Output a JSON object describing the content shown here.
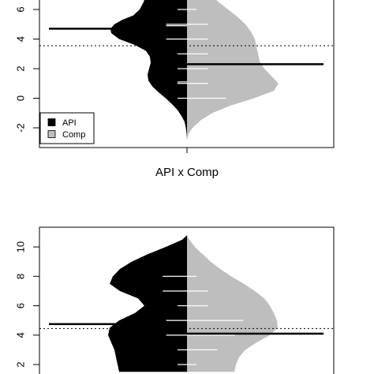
{
  "chart_data": [
    {
      "type": "beanplot",
      "title": "",
      "xlabel": "API x Comp",
      "ylabel": "",
      "y_axis_min_shown": -2.5,
      "y_axis_max_shown": 7,
      "y_ticks": [
        "-2",
        "0",
        "2",
        "4",
        "6"
      ],
      "y_tick_values": [
        -2,
        0,
        2,
        4,
        6
      ],
      "grid": false,
      "overall_mean_line": 3.55,
      "legend": {
        "placement": "bottom-left",
        "entries": [
          {
            "label": "API",
            "color": "#000000"
          },
          {
            "label": "Comp",
            "color": "#bebebe"
          }
        ]
      },
      "series": [
        {
          "name": "API",
          "side": "left",
          "color": "#000000",
          "mean": 4.7,
          "density_y": [
            7.0,
            6.5,
            6.0,
            5.6,
            5.3,
            5.0,
            4.7,
            4.4,
            4.0,
            3.6,
            3.2,
            2.8,
            2.4,
            2.0,
            1.6,
            1.2,
            0.8,
            0.4,
            0.0,
            -0.4,
            -0.8,
            -1.2,
            -1.6,
            -2.0,
            -2.4,
            -2.8
          ],
          "density_w": [
            0.52,
            0.55,
            0.6,
            0.68,
            0.82,
            0.92,
            0.97,
            0.96,
            0.86,
            0.66,
            0.52,
            0.47,
            0.46,
            0.48,
            0.5,
            0.49,
            0.44,
            0.36,
            0.27,
            0.19,
            0.12,
            0.07,
            0.03,
            0.015,
            0.005,
            0.0
          ],
          "observations": [
            6.0,
            5.0,
            4.9,
            4.0,
            3.0,
            2.0,
            1.1,
            1.0,
            0.0
          ],
          "observation_lengths": [
            0.22,
            0.48,
            0.48,
            0.48,
            0.22,
            0.22,
            0.22,
            0.22,
            0.22
          ]
        },
        {
          "name": "Comp",
          "side": "right",
          "color": "#bebebe",
          "mean": 2.3,
          "density_y": [
            7.0,
            6.5,
            6.0,
            5.5,
            5.0,
            4.5,
            4.0,
            3.5,
            3.0,
            2.5,
            2.0,
            1.5,
            1.0,
            0.5,
            0.0,
            -0.5,
            -1.0,
            -1.5,
            -2.0,
            -2.4,
            -2.8
          ],
          "density_w": [
            0.3,
            0.4,
            0.52,
            0.64,
            0.74,
            0.81,
            0.86,
            0.88,
            0.9,
            0.92,
            0.98,
            1.07,
            1.16,
            1.1,
            0.85,
            0.55,
            0.32,
            0.17,
            0.07,
            0.02,
            0.0
          ],
          "observations": [
            6.0,
            5.0,
            4.0,
            3.0,
            2.0,
            1.0,
            0.0
          ],
          "observation_lengths": [
            0.22,
            0.48,
            0.48,
            0.48,
            0.48,
            0.48,
            0.9
          ]
        }
      ]
    },
    {
      "type": "beanplot",
      "title": "",
      "xlabel": "",
      "ylabel": "",
      "y_axis_min_shown": 1.5,
      "y_axis_max_shown": 11,
      "y_ticks": [
        "2",
        "4",
        "6",
        "8",
        "10"
      ],
      "y_tick_values": [
        2,
        4,
        6,
        8,
        10
      ],
      "grid": false,
      "overall_mean_line": 4.45,
      "legend": null,
      "series": [
        {
          "name": "API",
          "side": "left",
          "color": "#000000",
          "mean": 4.75,
          "density_y": [
            10.8,
            10.5,
            10.0,
            9.5,
            9.0,
            8.5,
            8.0,
            7.5,
            7.0,
            6.5,
            6.0,
            5.5,
            5.0,
            4.5,
            4.0,
            3.5,
            3.0,
            2.5,
            2.0,
            1.5
          ],
          "density_w": [
            0.0,
            0.06,
            0.27,
            0.5,
            0.7,
            0.85,
            0.94,
            0.98,
            0.85,
            0.62,
            0.54,
            0.66,
            0.86,
            0.98,
            1.0,
            0.96,
            0.92,
            0.9,
            0.88,
            0.86
          ],
          "observations": [
            8.0,
            7.0,
            6.0,
            5.0,
            4.0,
            3.0,
            2.0
          ],
          "observation_lengths": [
            0.56,
            0.56,
            0.22,
            0.48,
            0.48,
            0.22,
            0.22
          ]
        },
        {
          "name": "Comp",
          "side": "right",
          "color": "#bebebe",
          "mean": 4.1,
          "density_y": [
            10.8,
            10.5,
            10.0,
            9.5,
            9.0,
            8.5,
            8.0,
            7.5,
            7.0,
            6.5,
            6.0,
            5.5,
            5.0,
            4.5,
            4.0,
            3.5,
            3.0,
            2.5,
            2.0,
            1.5
          ],
          "density_w": [
            0.0,
            0.03,
            0.1,
            0.2,
            0.3,
            0.42,
            0.56,
            0.72,
            0.86,
            0.98,
            1.05,
            1.1,
            1.14,
            1.15,
            1.05,
            0.88,
            0.74,
            0.66,
            0.62,
            0.6
          ],
          "observations": [
            8.0,
            7.0,
            6.0,
            5.0,
            4.0,
            3.0,
            2.0
          ],
          "observation_lengths": [
            0.22,
            0.48,
            0.48,
            1.3,
            1.1,
            0.7,
            0.22
          ]
        }
      ]
    }
  ]
}
